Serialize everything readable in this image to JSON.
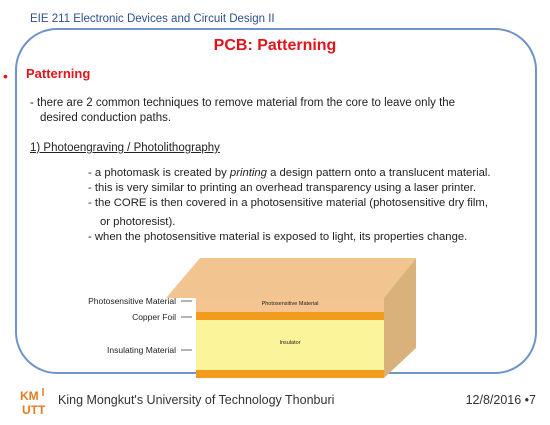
{
  "header": {
    "course": "EIE 211 Electronic Devices and Circuit Design II",
    "title": "PCB: Patterning"
  },
  "section": {
    "bullet": "•",
    "heading": "Patterning"
  },
  "intro": {
    "line1": "- there are 2 common techniques to remove material from the core to leave only the",
    "line2": "desired conduction paths."
  },
  "technique": {
    "heading": "1)  Photoengraving / Photolithography",
    "p1_pre": "- a photomask is created by ",
    "p1_em": "printing",
    "p1_post": " a design pattern onto a translucent material.",
    "p2": "- this is very similar to printing an overhead transparency using a laser printer.",
    "p3": "- the CORE is then covered in a photosensitive material (photosensitive dry film,",
    "p3b": "or photoresist).",
    "p4": "- when the photosensitive material is exposed to light, its properties change."
  },
  "figure": {
    "labels": {
      "photosensitive": "Photosensitive Material",
      "copper": "Copper Foil",
      "insulating": "Insulating Material"
    },
    "inner": {
      "photosensitive": "Photosensitive Material",
      "insulator": "Insulator"
    },
    "colors": {
      "top_face": "#f2c48f",
      "photoresist": "#f4c491",
      "copper": "#f39b1c",
      "insulator": "#fbf49a",
      "right_face": "#d9b27b"
    }
  },
  "footer": {
    "logo_text": "KMUTT",
    "university": "King Mongkut's University of Technology Thonburi",
    "date": "12/8/2016 •7"
  }
}
